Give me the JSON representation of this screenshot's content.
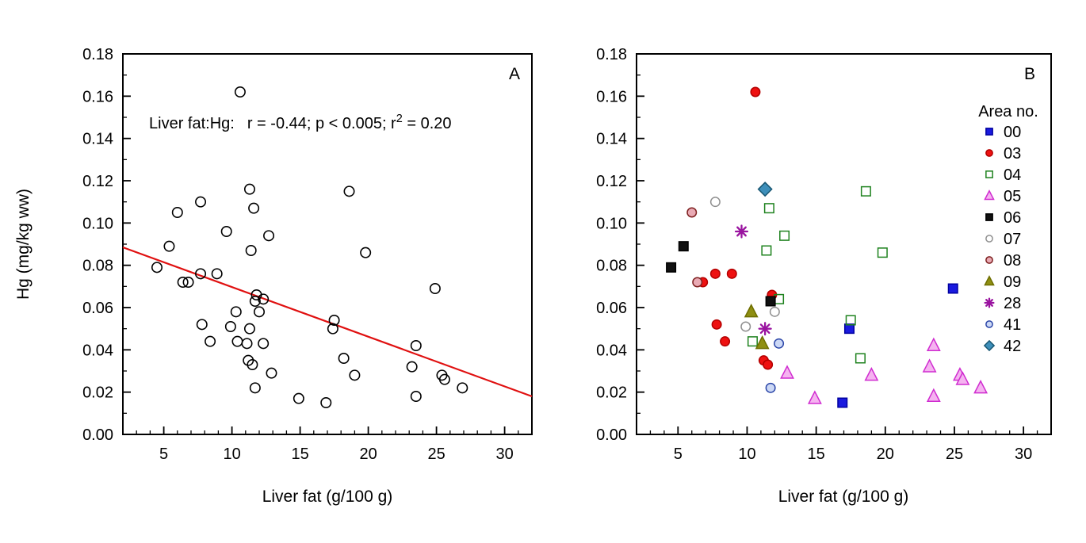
{
  "figure": {
    "y_axis_label": "Hg (mg/kg ww)",
    "x_axis_label": "Liver fat (g/100 g)",
    "panels": [
      {
        "letter": "A",
        "annotation_parts": [
          "Liver fat:Hg:",
          "r = -0.44; p < 0.005; r",
          "2",
          " = 0.20"
        ]
      },
      {
        "letter": "B",
        "legend_title": "Area no."
      }
    ]
  },
  "chart_data": [
    {
      "panel": "A",
      "type": "scatter",
      "title": "",
      "xlabel": "Liver fat (g/100 g)",
      "ylabel": "Hg (mg/kg ww)",
      "xlim": [
        2,
        32
      ],
      "ylim": [
        0,
        0.18
      ],
      "x_ticks": [
        5,
        10,
        15,
        20,
        25,
        30
      ],
      "y_ticks": [
        0.0,
        0.02,
        0.04,
        0.06,
        0.08,
        0.1,
        0.12,
        0.14,
        0.16,
        0.18
      ],
      "x_minor_step": 1,
      "y_minor_step": 0.01,
      "grid": false,
      "annotation": "Liver fat:Hg:  r = -0.44; p < 0.005; r2 = 0.20",
      "stats": {
        "r": -0.44,
        "p": "< 0.005",
        "r2": 0.2
      },
      "marker": {
        "shape": "circle",
        "fill": "none",
        "stroke": "#000000"
      },
      "regression_line": {
        "color": "#e01010",
        "x_start": 2,
        "y_start": 0.0885,
        "x_end": 32,
        "y_end": 0.018
      },
      "points": [
        [
          10.6,
          0.162
        ],
        [
          11.3,
          0.116
        ],
        [
          18.6,
          0.115
        ],
        [
          7.7,
          0.11
        ],
        [
          11.6,
          0.107
        ],
        [
          6.0,
          0.105
        ],
        [
          9.6,
          0.096
        ],
        [
          12.7,
          0.094
        ],
        [
          5.4,
          0.089
        ],
        [
          11.4,
          0.087
        ],
        [
          19.8,
          0.086
        ],
        [
          4.5,
          0.079
        ],
        [
          7.7,
          0.076
        ],
        [
          8.9,
          0.076
        ],
        [
          6.4,
          0.072
        ],
        [
          6.8,
          0.072
        ],
        [
          24.9,
          0.069
        ],
        [
          11.8,
          0.066
        ],
        [
          12.3,
          0.064
        ],
        [
          11.7,
          0.063
        ],
        [
          10.3,
          0.058
        ],
        [
          12.0,
          0.058
        ],
        [
          17.5,
          0.054
        ],
        [
          7.8,
          0.052
        ],
        [
          9.9,
          0.051
        ],
        [
          11.3,
          0.05
        ],
        [
          17.4,
          0.05
        ],
        [
          8.4,
          0.044
        ],
        [
          10.4,
          0.044
        ],
        [
          11.1,
          0.043
        ],
        [
          12.3,
          0.043
        ],
        [
          23.5,
          0.042
        ],
        [
          18.2,
          0.036
        ],
        [
          11.2,
          0.035
        ],
        [
          11.5,
          0.033
        ],
        [
          23.2,
          0.032
        ],
        [
          12.9,
          0.029
        ],
        [
          19.0,
          0.028
        ],
        [
          25.4,
          0.028
        ],
        [
          25.6,
          0.026
        ],
        [
          26.9,
          0.022
        ],
        [
          11.7,
          0.022
        ],
        [
          23.5,
          0.018
        ],
        [
          14.9,
          0.017
        ],
        [
          16.9,
          0.015
        ]
      ]
    },
    {
      "panel": "B",
      "type": "scatter",
      "title": "",
      "xlabel": "Liver fat (g/100 g)",
      "ylabel": "",
      "xlim": [
        2,
        32
      ],
      "ylim": [
        0,
        0.18
      ],
      "x_ticks": [
        5,
        10,
        15,
        20,
        25,
        30
      ],
      "y_ticks": [
        0.0,
        0.02,
        0.04,
        0.06,
        0.08,
        0.1,
        0.12,
        0.14,
        0.16,
        0.18
      ],
      "x_minor_step": 1,
      "y_minor_step": 0.01,
      "grid": false,
      "legend_title": "Area no.",
      "legend_position": "upper right",
      "series": [
        {
          "name": "00",
          "marker": "square",
          "fill": "#1a1adf",
          "stroke": "#0000a0",
          "points": [
            [
              24.9,
              0.069
            ],
            [
              17.4,
              0.05
            ],
            [
              16.9,
              0.015
            ]
          ]
        },
        {
          "name": "03",
          "marker": "circle",
          "fill": "#ee1111",
          "stroke": "#b30000",
          "points": [
            [
              10.6,
              0.162
            ],
            [
              8.9,
              0.076
            ],
            [
              7.7,
              0.076
            ],
            [
              6.8,
              0.072
            ],
            [
              11.8,
              0.066
            ],
            [
              7.8,
              0.052
            ],
            [
              8.4,
              0.044
            ],
            [
              11.2,
              0.035
            ],
            [
              11.5,
              0.033
            ]
          ]
        },
        {
          "name": "04",
          "marker": "square",
          "fill": "none",
          "stroke": "#1e821e",
          "points": [
            [
              18.6,
              0.115
            ],
            [
              11.6,
              0.107
            ],
            [
              12.7,
              0.094
            ],
            [
              11.4,
              0.087
            ],
            [
              19.8,
              0.086
            ],
            [
              12.3,
              0.064
            ],
            [
              17.5,
              0.054
            ],
            [
              10.4,
              0.044
            ],
            [
              18.2,
              0.036
            ]
          ]
        },
        {
          "name": "05",
          "marker": "triangle",
          "fill": "#f5b3f0",
          "stroke": "#d02cd0",
          "points": [
            [
              23.5,
              0.042
            ],
            [
              23.2,
              0.032
            ],
            [
              12.9,
              0.029
            ],
            [
              19.0,
              0.028
            ],
            [
              25.4,
              0.028
            ],
            [
              25.6,
              0.026
            ],
            [
              26.9,
              0.022
            ],
            [
              23.5,
              0.018
            ],
            [
              14.9,
              0.017
            ]
          ]
        },
        {
          "name": "06",
          "marker": "square",
          "fill": "#111111",
          "stroke": "#000000",
          "points": [
            [
              5.4,
              0.089
            ],
            [
              4.5,
              0.079
            ],
            [
              11.7,
              0.063
            ]
          ]
        },
        {
          "name": "07",
          "marker": "circle",
          "fill": "#ffffff",
          "stroke": "#909090",
          "points": [
            [
              7.7,
              0.11
            ],
            [
              12.0,
              0.058
            ],
            [
              9.9,
              0.051
            ]
          ]
        },
        {
          "name": "08",
          "marker": "circle",
          "fill": "#e9aab4",
          "stroke": "#7e2020",
          "points": [
            [
              6.0,
              0.105
            ],
            [
              6.4,
              0.072
            ]
          ]
        },
        {
          "name": "09",
          "marker": "triangle",
          "fill": "#8f8f12",
          "stroke": "#6e6e00",
          "points": [
            [
              10.3,
              0.058
            ],
            [
              11.1,
              0.043
            ]
          ]
        },
        {
          "name": "28",
          "marker": "asterisk",
          "fill": "none",
          "stroke": "#9a14a0",
          "points": [
            [
              9.6,
              0.096
            ],
            [
              11.3,
              0.05
            ]
          ]
        },
        {
          "name": "41",
          "marker": "circle",
          "fill": "#ccd8f5",
          "stroke": "#2b46a8",
          "points": [
            [
              12.3,
              0.043
            ],
            [
              11.7,
              0.022
            ]
          ]
        },
        {
          "name": "42",
          "marker": "diamond",
          "fill": "#3e8fba",
          "stroke": "#175672",
          "points": [
            [
              11.3,
              0.116
            ]
          ]
        }
      ]
    }
  ]
}
